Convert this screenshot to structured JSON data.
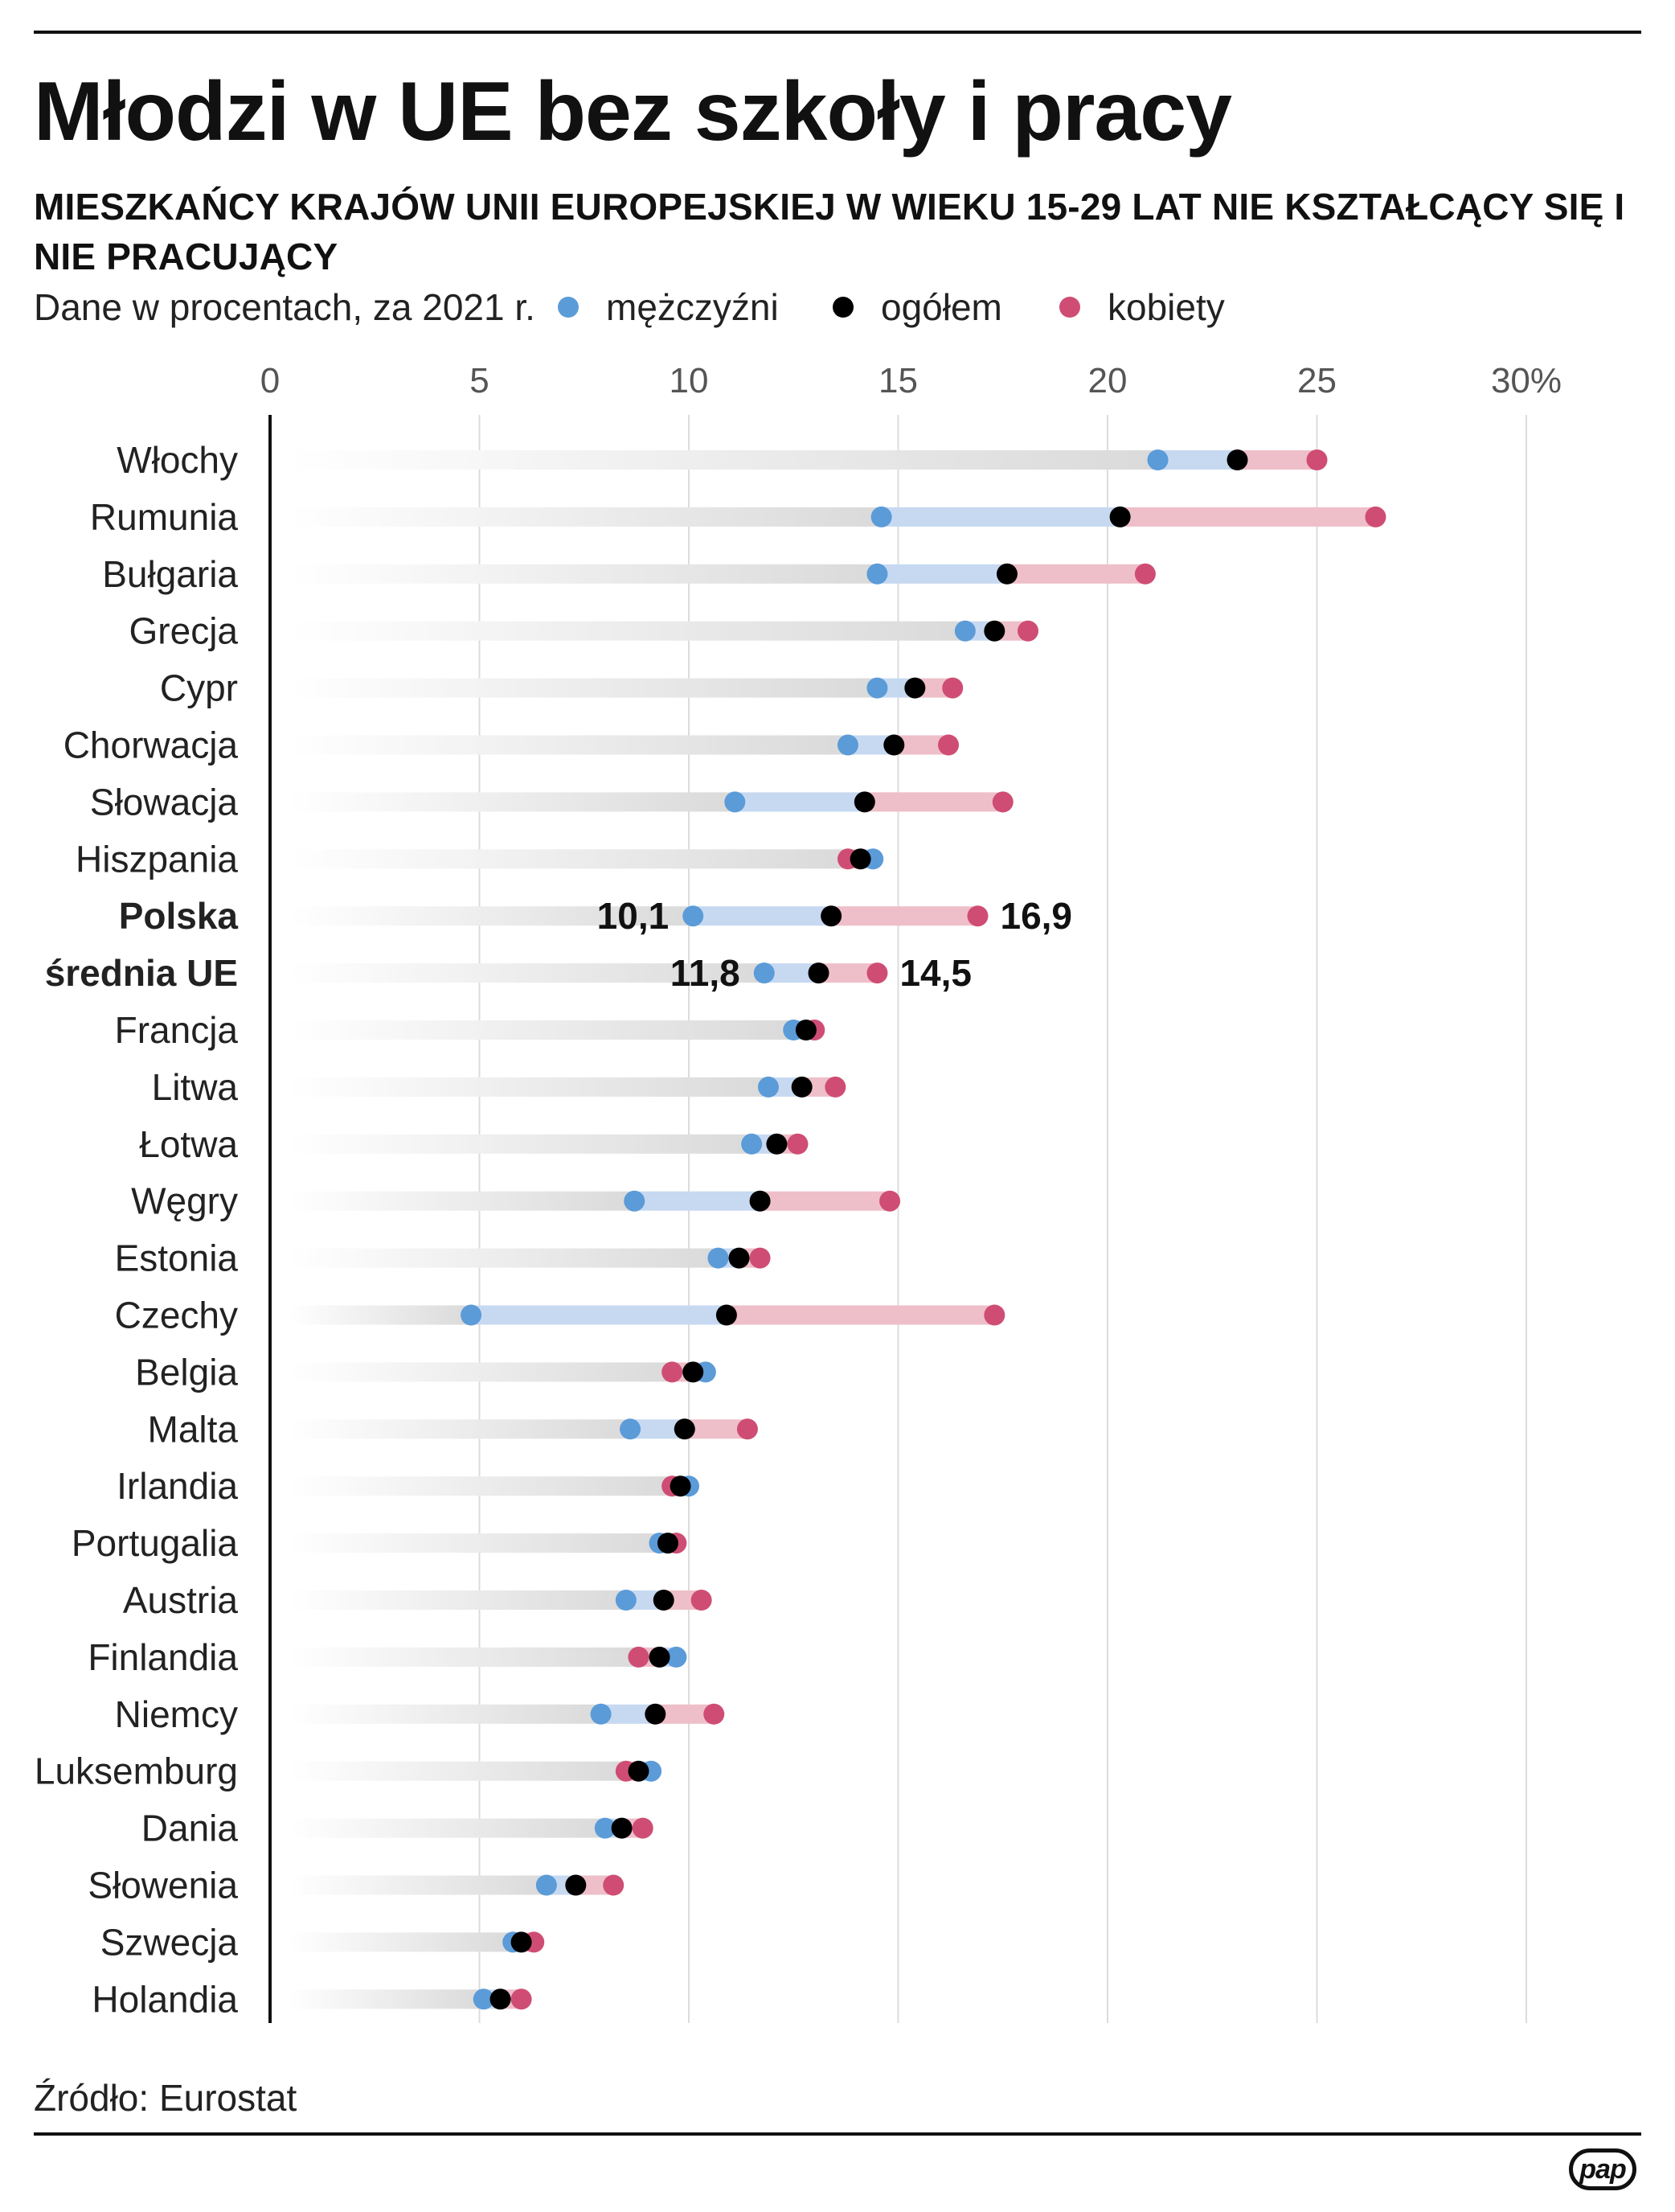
{
  "header": {
    "title": "Młodzi w UE bez szkoły i pracy",
    "subtitle": "MIESZKAŃCY KRAJÓW UNII EUROPEJSKIEJ W WIEKU 15-29 LAT NIE KSZTAŁCĄCY SIĘ I NIE PRACUJĄCY",
    "note": "Dane w procentach, za 2021 r."
  },
  "legend": {
    "men": "mężczyźni",
    "total": "ogółem",
    "women": "kobiety"
  },
  "colors": {
    "men": "#5b9bd8",
    "total": "#000000",
    "women": "#cf4d74",
    "men_band": "#c7d9f1",
    "women_band": "#eebfc9",
    "base_band": "#dadada",
    "grid": "#dcdcdc",
    "tick": "#555555"
  },
  "chart_data": {
    "type": "dot-range",
    "title": "Młodzi w UE bez szkoły i pracy",
    "xlabel": "",
    "ylabel": "",
    "xlim": [
      0,
      30
    ],
    "x_ticks": [
      0,
      5,
      10,
      15,
      20,
      25,
      30
    ],
    "x_tick_labels": [
      "0",
      "5",
      "10",
      "15",
      "20",
      "25",
      "30%"
    ],
    "series_names": [
      "mężczyźni",
      "ogółem",
      "kobiety"
    ],
    "rows": [
      {
        "country": "Włochy",
        "men": 21.2,
        "total": 23.1,
        "women": 25.0,
        "bold": false
      },
      {
        "country": "Rumunia",
        "men": 14.6,
        "total": 20.3,
        "women": 26.4,
        "bold": false
      },
      {
        "country": "Bułgaria",
        "men": 14.5,
        "total": 17.6,
        "women": 20.9,
        "bold": false
      },
      {
        "country": "Grecja",
        "men": 16.6,
        "total": 17.3,
        "women": 18.1,
        "bold": false
      },
      {
        "country": "Cypr",
        "men": 14.5,
        "total": 15.4,
        "women": 16.3,
        "bold": false
      },
      {
        "country": "Chorwacja",
        "men": 13.8,
        "total": 14.9,
        "women": 16.2,
        "bold": false
      },
      {
        "country": "Słowacja",
        "men": 11.1,
        "total": 14.2,
        "women": 17.5,
        "bold": false
      },
      {
        "country": "Hiszpania",
        "men": 14.4,
        "total": 14.1,
        "women": 13.8,
        "bold": false
      },
      {
        "country": "Polska",
        "men": 10.1,
        "total": 13.4,
        "women": 16.9,
        "bold": true,
        "label_men": "10,1",
        "label_women": "16,9"
      },
      {
        "country": "średnia UE",
        "men": 11.8,
        "total": 13.1,
        "women": 14.5,
        "bold": true,
        "label_men": "11,8",
        "label_women": "14,5"
      },
      {
        "country": "Francja",
        "men": 12.5,
        "total": 12.8,
        "women": 13.0,
        "bold": false
      },
      {
        "country": "Litwa",
        "men": 11.9,
        "total": 12.7,
        "women": 13.5,
        "bold": false
      },
      {
        "country": "Łotwa",
        "men": 11.5,
        "total": 12.1,
        "women": 12.6,
        "bold": false
      },
      {
        "country": "Węgry",
        "men": 8.7,
        "total": 11.7,
        "women": 14.8,
        "bold": false
      },
      {
        "country": "Estonia",
        "men": 10.7,
        "total": 11.2,
        "women": 11.7,
        "bold": false
      },
      {
        "country": "Czechy",
        "men": 4.8,
        "total": 10.9,
        "women": 17.3,
        "bold": false
      },
      {
        "country": "Belgia",
        "men": 10.4,
        "total": 10.1,
        "women": 9.6,
        "bold": false
      },
      {
        "country": "Malta",
        "men": 8.6,
        "total": 9.9,
        "women": 11.4,
        "bold": false
      },
      {
        "country": "Irlandia",
        "men": 10.0,
        "total": 9.8,
        "women": 9.6,
        "bold": false
      },
      {
        "country": "Portugalia",
        "men": 9.3,
        "total": 9.5,
        "women": 9.7,
        "bold": false
      },
      {
        "country": "Austria",
        "men": 8.5,
        "total": 9.4,
        "women": 10.3,
        "bold": false
      },
      {
        "country": "Finlandia",
        "men": 9.7,
        "total": 9.3,
        "women": 8.8,
        "bold": false
      },
      {
        "country": "Niemcy",
        "men": 7.9,
        "total": 9.2,
        "women": 10.6,
        "bold": false
      },
      {
        "country": "Luksemburg",
        "men": 9.1,
        "total": 8.8,
        "women": 8.5,
        "bold": false
      },
      {
        "country": "Dania",
        "men": 8.0,
        "total": 8.4,
        "women": 8.9,
        "bold": false
      },
      {
        "country": "Słowenia",
        "men": 6.6,
        "total": 7.3,
        "women": 8.2,
        "bold": false
      },
      {
        "country": "Szwecja",
        "men": 5.8,
        "total": 6.0,
        "women": 6.3,
        "bold": false
      },
      {
        "country": "Holandia",
        "men": 5.1,
        "total": 5.5,
        "women": 6.0,
        "bold": false
      }
    ]
  },
  "footer": {
    "source": "Źródło: Eurostat",
    "logo": "pap"
  }
}
